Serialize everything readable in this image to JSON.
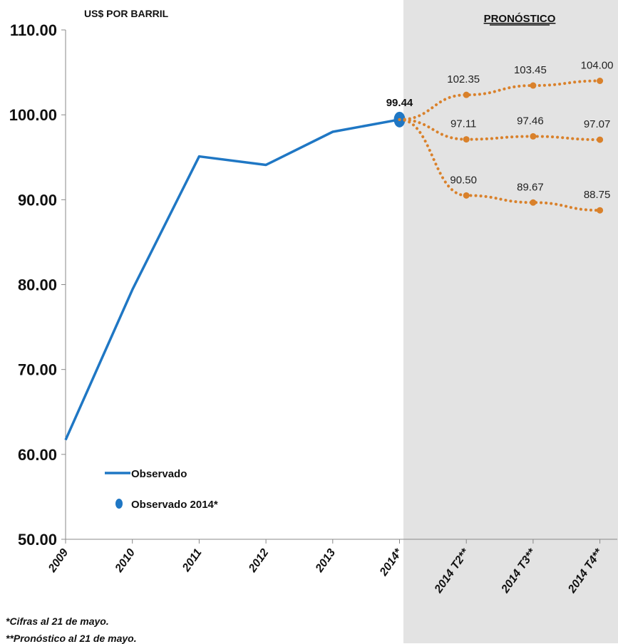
{
  "chart_data": {
    "type": "line",
    "unit_label": "US$ POR BARRIL",
    "forecast_title": "PRONÓSTICO",
    "ylim": [
      50,
      110
    ],
    "y_ticks": [
      "50.00",
      "60.00",
      "70.00",
      "80.00",
      "90.00",
      "100.00",
      "110.00"
    ],
    "categories": [
      "2009",
      "2010",
      "2011",
      "2012",
      "2013",
      "2014*",
      "2014 T2**",
      "2014 T3**",
      "2014 T4**"
    ],
    "series": [
      {
        "name": "Observado",
        "style": "solid",
        "color": "#1F77C4",
        "x": [
          "2009",
          "2010",
          "2011",
          "2012",
          "2013",
          "2014*"
        ],
        "values": [
          61.7,
          79.4,
          95.1,
          94.1,
          98.0,
          99.44
        ]
      },
      {
        "name": "Observado 2014*",
        "style": "marker",
        "color": "#1F77C4",
        "x": [
          "2014*"
        ],
        "values": [
          99.44
        ],
        "labels": [
          "99.44"
        ]
      },
      {
        "style": "dotted",
        "color": "#D9812B",
        "x": [
          "2014*",
          "2014 T2**",
          "2014 T3**",
          "2014 T4**"
        ],
        "values": [
          99.44,
          102.35,
          103.45,
          104.0
        ],
        "labels": [
          "",
          "102.35",
          "103.45",
          "104.00"
        ]
      },
      {
        "style": "dotted",
        "color": "#D9812B",
        "x": [
          "2014*",
          "2014 T2**",
          "2014 T3**",
          "2014 T4**"
        ],
        "values": [
          99.44,
          97.11,
          97.46,
          97.07
        ],
        "labels": [
          "",
          "97.11",
          "97.46",
          "97.07"
        ]
      },
      {
        "style": "dotted",
        "color": "#D9812B",
        "x": [
          "2014*",
          "2014 T2**",
          "2014 T3**",
          "2014 T4**"
        ],
        "values": [
          99.44,
          90.5,
          89.67,
          88.75
        ],
        "labels": [
          "",
          "90.50",
          "89.67",
          "88.75"
        ]
      }
    ],
    "forecast_region": {
      "from": "2014*",
      "color": "#E3E3E3"
    },
    "legend": [
      "Observado",
      "Observado 2014*"
    ],
    "grid": false
  },
  "footnotes": {
    "note1": "*Cifras al 21 de mayo.",
    "note2": "**Pronóstico al 21 de mayo."
  }
}
